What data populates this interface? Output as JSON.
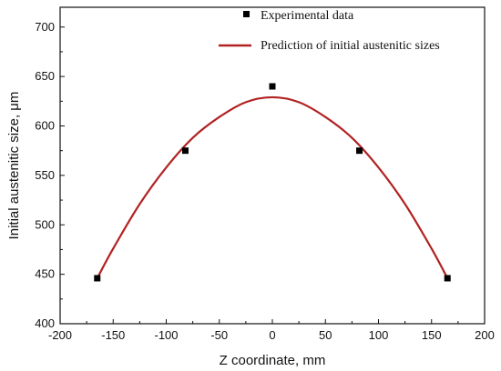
{
  "chart_data": {
    "type": "scatter",
    "title": "",
    "xlabel": "Z coordinate, mm",
    "ylabel": "Initial austenitic size, μm",
    "xlim": [
      -200,
      200
    ],
    "ylim": [
      400,
      720
    ],
    "xticks": [
      -200,
      -150,
      -100,
      -50,
      0,
      50,
      100,
      150,
      200
    ],
    "yticks": [
      400,
      450,
      500,
      550,
      600,
      650,
      700
    ],
    "legend_position": "top-right",
    "series": [
      {
        "name": "Experimental data",
        "kind": "scatter",
        "marker": "square",
        "color": "#000000",
        "x": [
          -165,
          -82,
          0,
          82,
          165
        ],
        "y": [
          446,
          575,
          640,
          575,
          446
        ]
      },
      {
        "name": "Prediction of initial austenitic sizes",
        "kind": "line",
        "color": "#b22222",
        "x": [
          -165,
          -150,
          -125,
          -100,
          -75,
          -50,
          -25,
          0,
          25,
          50,
          75,
          100,
          125,
          150,
          165
        ],
        "y": [
          446,
          476,
          521,
          558,
          588,
          609,
          624,
          629,
          624,
          609,
          588,
          558,
          521,
          476,
          446
        ]
      }
    ]
  }
}
